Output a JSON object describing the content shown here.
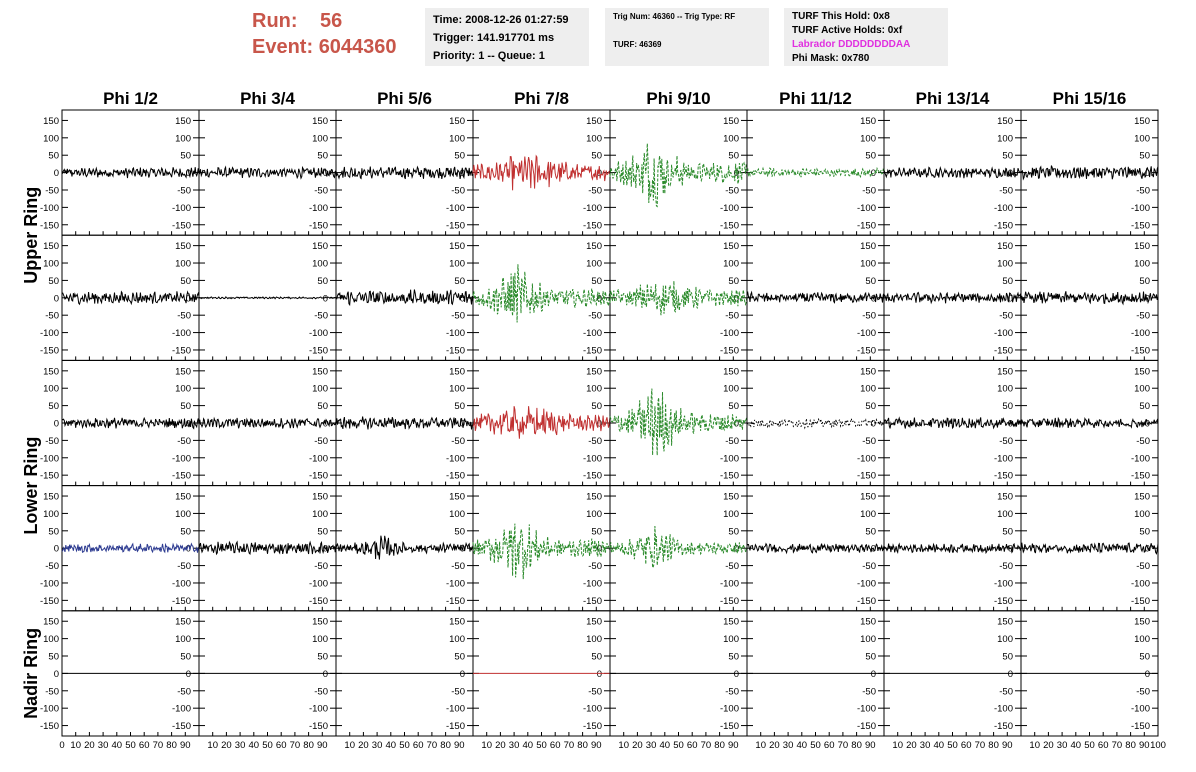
{
  "header": {
    "run_label": "Run:",
    "run_value": "56",
    "event_label": "Event:",
    "event_value": "6044360",
    "time_line": "Time: 2008-12-26 01:27:59",
    "trigger_line": "Trigger: 141.917701 ms",
    "priority_line": "Priority: 1 -- Queue: 1",
    "trig_num_line": "Trig Num: 46360 -- Trig Type: RF",
    "turf_line": "TURF: 46369",
    "turf_hold_line": "TURF This Hold: 0x8",
    "turf_active_line": "TURF Active Holds: 0xf",
    "labrador_line": "Labrador DDDDDDDDAA",
    "phi_mask_line": "Phi Mask: 0x780"
  },
  "chart_data": {
    "type": "line",
    "columns": [
      "Phi 1/2",
      "Phi 3/4",
      "Phi 5/6",
      "Phi 7/8",
      "Phi 9/10",
      "Phi 11/12",
      "Phi 13/14",
      "Phi 15/16"
    ],
    "ring_labels": [
      "Upper Ring",
      "Lower Ring",
      "Nadir Ring"
    ],
    "rows": 5,
    "xlim": [
      0,
      100
    ],
    "ylim": [
      -180,
      180
    ],
    "x_ticks": [
      0,
      10,
      20,
      30,
      40,
      50,
      60,
      70,
      80,
      90
    ],
    "x_last_tick": 100,
    "y_ticks": [
      150,
      100,
      50,
      0,
      -50,
      -100,
      -150
    ],
    "colors": {
      "black": "#000000",
      "red": "#c03030",
      "green": "#2a8a2a",
      "blue": "#2c3a90"
    },
    "cells": [
      [
        {
          "color": "black",
          "amp": 12,
          "env": "flat",
          "style": "solid"
        },
        {
          "color": "black",
          "amp": 12,
          "env": "flat",
          "style": "solid"
        },
        {
          "color": "black",
          "amp": 14,
          "env": "flat",
          "style": "solid"
        },
        {
          "color": "red",
          "amp": 42,
          "env": "mid",
          "style": "solid"
        },
        {
          "color": "green",
          "amp": 70,
          "env": "peak30",
          "style": "dashed"
        },
        {
          "color": "green",
          "amp": 10,
          "env": "flat",
          "style": "dashed"
        },
        {
          "color": "black",
          "amp": 12,
          "env": "flat",
          "style": "solid"
        },
        {
          "color": "black",
          "amp": 15,
          "env": "flat",
          "style": "solid"
        }
      ],
      [
        {
          "color": "black",
          "amp": 14,
          "env": "flat",
          "style": "solid"
        },
        {
          "color": "black",
          "amp": 2,
          "env": "flat",
          "style": "solid"
        },
        {
          "color": "black",
          "amp": 18,
          "env": "flat",
          "style": "solid"
        },
        {
          "color": "green",
          "amp": 60,
          "env": "peak30",
          "style": "dashed"
        },
        {
          "color": "green",
          "amp": 40,
          "env": "mid",
          "style": "dashed"
        },
        {
          "color": "black",
          "amp": 12,
          "env": "flat",
          "style": "solid"
        },
        {
          "color": "black",
          "amp": 12,
          "env": "flat",
          "style": "solid"
        },
        {
          "color": "black",
          "amp": 14,
          "env": "flat",
          "style": "solid"
        }
      ],
      [
        {
          "color": "black",
          "amp": 12,
          "env": "flat",
          "style": "solid"
        },
        {
          "color": "black",
          "amp": 12,
          "env": "flat",
          "style": "solid"
        },
        {
          "color": "black",
          "amp": 14,
          "env": "flat",
          "style": "solid"
        },
        {
          "color": "red",
          "amp": 40,
          "env": "mid",
          "style": "solid"
        },
        {
          "color": "green",
          "amp": 70,
          "env": "peak30",
          "style": "dashed"
        },
        {
          "color": "black",
          "amp": 10,
          "env": "flat",
          "style": "dotted"
        },
        {
          "color": "black",
          "amp": 12,
          "env": "flat",
          "style": "solid"
        },
        {
          "color": "black",
          "amp": 12,
          "env": "flat",
          "style": "solid"
        }
      ],
      [
        {
          "color": "blue",
          "amp": 10,
          "env": "flat",
          "style": "solid"
        },
        {
          "color": "black",
          "amp": 14,
          "env": "flat",
          "style": "solid"
        },
        {
          "color": "black",
          "amp": 24,
          "env": "early",
          "style": "solid"
        },
        {
          "color": "green",
          "amp": 60,
          "env": "peak30",
          "style": "dashed"
        },
        {
          "color": "green",
          "amp": 40,
          "env": "peak30",
          "style": "dashed"
        },
        {
          "color": "black",
          "amp": 10,
          "env": "flat",
          "style": "solid"
        },
        {
          "color": "black",
          "amp": 10,
          "env": "flat",
          "style": "solid"
        },
        {
          "color": "black",
          "amp": 12,
          "env": "flat",
          "style": "solid"
        }
      ],
      [
        {
          "color": "black",
          "amp": 0,
          "env": "flat",
          "style": "solid"
        },
        {
          "color": "black",
          "amp": 0,
          "env": "flat",
          "style": "solid"
        },
        {
          "color": "black",
          "amp": 0,
          "env": "flat",
          "style": "solid"
        },
        {
          "color": "red",
          "amp": 0,
          "env": "flat",
          "style": "solid"
        },
        {
          "color": "black",
          "amp": 0,
          "env": "flat",
          "style": "solid"
        },
        {
          "color": "black",
          "amp": 0,
          "env": "flat",
          "style": "solid"
        },
        {
          "color": "black",
          "amp": 0,
          "env": "flat",
          "style": "solid"
        },
        {
          "color": "black",
          "amp": 0,
          "env": "flat",
          "style": "solid"
        }
      ]
    ]
  }
}
